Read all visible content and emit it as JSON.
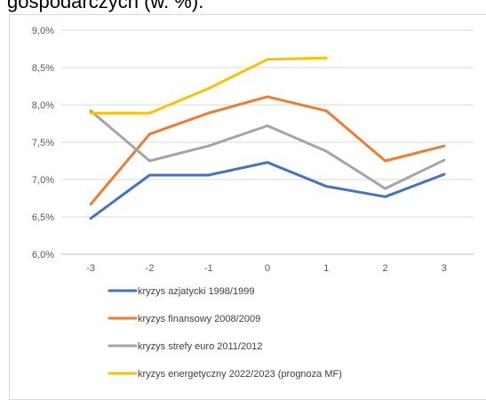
{
  "caption": "gospodarczych (w. %).",
  "chart_data": {
    "type": "line",
    "title": "",
    "xlabel": "",
    "ylabel": "",
    "x": [
      -3,
      -2,
      -1,
      0,
      1,
      2,
      3
    ],
    "x_tick_labels": [
      "-3",
      "-2",
      "-1",
      "0",
      "1",
      "2",
      "3"
    ],
    "ylim": [
      6.0,
      9.0
    ],
    "y_tick_labels": [
      "6,0%",
      "6,5%",
      "7,0%",
      "7,5%",
      "8,0%",
      "8,5%",
      "9,0%"
    ],
    "grid": true,
    "legend_position": "bottom",
    "series": [
      {
        "name": "kryzys azjatycki 1998/1999",
        "color": "#4472C4",
        "values": [
          6.48,
          7.06,
          7.06,
          7.23,
          6.91,
          6.77,
          7.07
        ]
      },
      {
        "name": "kryzys finansowy 2008/2009",
        "color": "#ED7D31",
        "values": [
          6.67,
          7.61,
          7.89,
          8.11,
          7.92,
          7.25,
          7.45
        ]
      },
      {
        "name": "kryzys strefy euro 2011/2012",
        "color": "#A5A5A5",
        "values": [
          7.92,
          7.25,
          7.45,
          7.72,
          7.38,
          6.88,
          7.26
        ]
      },
      {
        "name": "kryzys energetyczny 2022/2023 (prognoza MF)",
        "color": "#FFC000",
        "values": [
          7.89,
          7.89,
          8.22,
          8.61,
          8.63,
          null,
          null
        ]
      }
    ]
  }
}
